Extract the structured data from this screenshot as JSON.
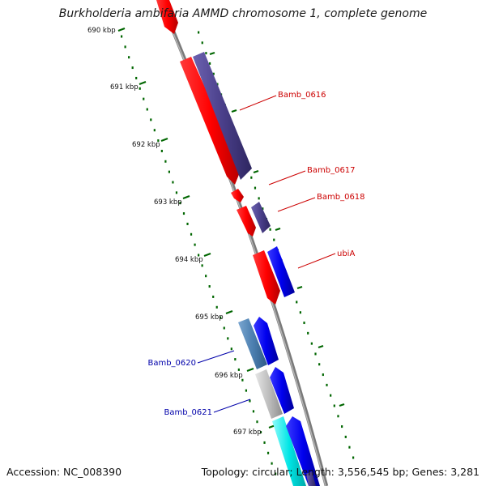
{
  "title": "Burkholderia ambifaria AMMD chromosome 1, complete genome",
  "footer": {
    "accession": "Accession: NC_008390",
    "summary": "Topology: circular; Length: 3,556,545 bp; Genes: 3,281"
  },
  "ruler": {
    "ticks": [
      {
        "label": "690 kbp",
        "kbp": 690
      },
      {
        "label": "691 kbp",
        "kbp": 691
      },
      {
        "label": "692 kbp",
        "kbp": 692
      },
      {
        "label": "693 kbp",
        "kbp": 693
      },
      {
        "label": "694 kbp",
        "kbp": 694
      },
      {
        "label": "695 kbp",
        "kbp": 695
      },
      {
        "label": "696 kbp",
        "kbp": 696
      },
      {
        "label": "697 kbp",
        "kbp": 697
      }
    ]
  },
  "gene_labels": [
    {
      "text": "Bamb_0616",
      "color": "#cc0000"
    },
    {
      "text": "Bamb_0617",
      "color": "#cc0000"
    },
    {
      "text": "Bamb_0618",
      "color": "#cc0000"
    },
    {
      "text": "ubiA",
      "color": "#cc0000"
    },
    {
      "text": "Bamb_0620",
      "color": "#0000aa"
    },
    {
      "text": "Bamb_0621",
      "color": "#0000aa"
    }
  ],
  "colors": {
    "backbone": "#888888",
    "tick_green": "#006600",
    "feature_red": "#ff0000",
    "feature_purple": "#4a3f8a",
    "feature_blue": "#0000ee",
    "feature_steelblue": "#4c7fb0",
    "feature_grey": "#bdbdbd",
    "feature_cyan": "#00e5e5"
  }
}
